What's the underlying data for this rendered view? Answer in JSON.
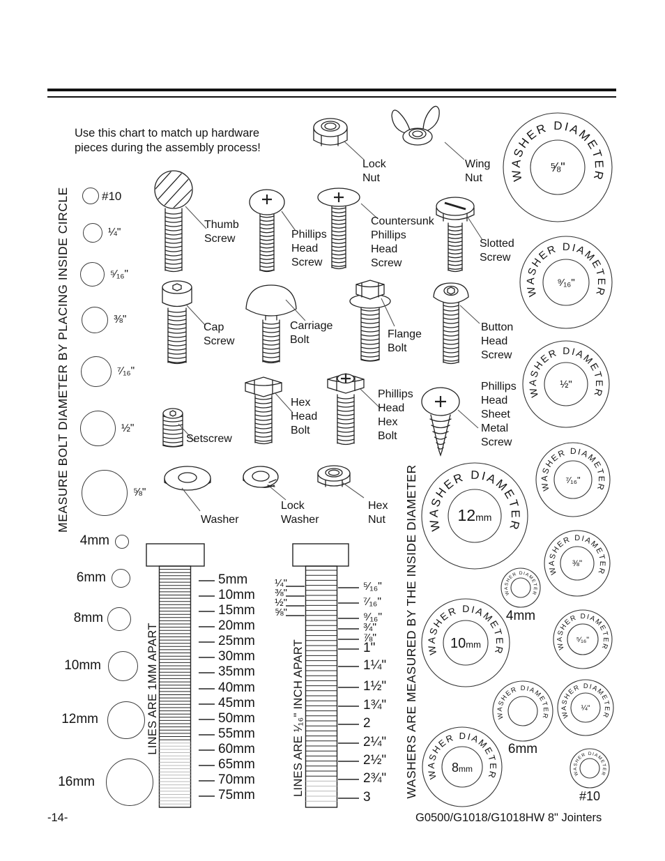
{
  "page": {
    "intro": "Use this chart to match up hardware\npieces during the assembly process!",
    "footer_left": "-14-",
    "footer_right": "G0500/G1018/G1018HW  8\" Jointers"
  },
  "colors": {
    "ink": "#141414",
    "paper": "#ffffff"
  },
  "left_panel": {
    "vertical_label": "MEASURE BOLT DIAMETER BY PLACING INSIDE CIRCLE",
    "inch_circles": [
      "#10",
      "¼\"",
      "⁵⁄₁₆\"",
      "⅜\"",
      "⁷⁄₁₆\"",
      "½\"",
      "⅝\""
    ],
    "mm_circles": [
      "4mm",
      "6mm",
      "8mm",
      "10mm",
      "12mm",
      "16mm"
    ]
  },
  "hardware": {
    "lock_nut": "Lock\nNut",
    "wing_nut": "Wing\nNut",
    "thumb_screw": "Thumb\nScrew",
    "phillips_head_screw": "Phillips\nHead\nScrew",
    "countersunk_phillips_head_screw": "Countersunk\nPhillips\nHead\nScrew",
    "slotted_screw": "Slotted\nScrew",
    "cap_screw": "Cap\nScrew",
    "carriage_bolt": "Carriage\nBolt",
    "flange_bolt": "Flange\nBolt",
    "button_head_screw": "Button\nHead\nScrew",
    "setscrew": "Setscrew",
    "hex_head_bolt": "Hex\nHead\nBolt",
    "phillips_head_hex_bolt": "Phillips\nHead\nHex\nBolt",
    "phillips_head_sheet_metal_screw": "Phillips\nHead\nSheet\nMetal\nScrew",
    "washer": "Washer",
    "lock_washer": "Lock\nWasher",
    "hex_nut": "Hex\nNut"
  },
  "washers": {
    "vertical_label": "WASHERS ARE MEASURED BY THE INSIDE DIAMETER",
    "ring_text": "WASHER DIAMETER",
    "circles": [
      {
        "size": "⅝\""
      },
      {
        "size": "⁹⁄₁₆\""
      },
      {
        "size": "½\""
      },
      {
        "size": "⁷⁄₁₆\""
      },
      {
        "size": "⅜\""
      },
      {
        "size": "⁵⁄₁₆\""
      },
      {
        "size": "¼\""
      },
      {
        "size": "#10"
      },
      {
        "num": "12",
        "unit": "mm"
      },
      {
        "size": "4mm"
      },
      {
        "num": "10",
        "unit": "mm"
      },
      {
        "size": "6mm"
      },
      {
        "num": "8",
        "unit": "mm"
      }
    ]
  },
  "rulers": {
    "metric": {
      "note": "LINES ARE 1MM APART",
      "labels": [
        "5mm",
        "10mm",
        "15mm",
        "20mm",
        "25mm",
        "30mm",
        "35mm",
        "40mm",
        "45mm",
        "50mm",
        "55mm",
        "60mm",
        "65mm",
        "70mm",
        "75mm"
      ]
    },
    "imperial": {
      "note": "LINES ARE ¹⁄₁₆\" INCH APART",
      "left_labels": [
        "¼\"",
        "⅜\"",
        "½\"",
        "⅝\""
      ],
      "right_labels": [
        "⁵⁄₁₆\"",
        "⁷⁄₁₆\"",
        "⁹⁄₁₆\"",
        "¾\"",
        "⅞\"",
        "1\"",
        "1¼\"",
        "1½\"",
        "1¾\"",
        "2",
        "2¼\"",
        "2½\"",
        "2¾\"",
        "3"
      ]
    }
  }
}
